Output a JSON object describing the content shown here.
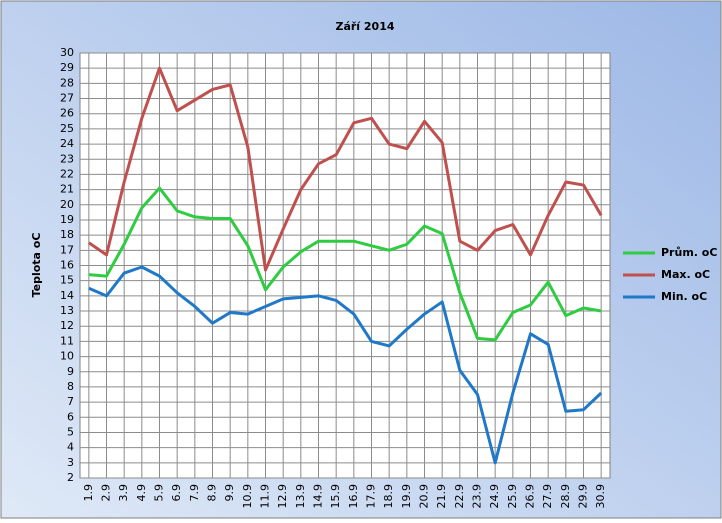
{
  "chart_data": {
    "type": "line",
    "title": "Září 2014",
    "y_label": "Teplota oC",
    "categories": [
      "1.9",
      "2.9",
      "3.9",
      "4.9",
      "5.9",
      "6.9",
      "7.9",
      "8.9",
      "9.9",
      "10.9",
      "11.9",
      "12.9",
      "13.9",
      "14.9",
      "15.9",
      "16.9",
      "17.9",
      "18.9",
      "19.9",
      "20.9",
      "21.9",
      "22.9",
      "23.9",
      "24.9",
      "25.9",
      "26.9",
      "27.9",
      "28.9",
      "29.9",
      "30.9"
    ],
    "series": [
      {
        "name": "Prům. oC",
        "color": "#2ecc40",
        "values": [
          15.4,
          15.3,
          17.4,
          19.8,
          21.1,
          19.6,
          19.2,
          19.1,
          19.1,
          17.3,
          14.4,
          15.9,
          16.9,
          17.6,
          17.6,
          17.6,
          17.3,
          17.0,
          17.4,
          18.6,
          18.1,
          14.2,
          11.2,
          11.1,
          12.9,
          13.4,
          14.9,
          12.7,
          13.2,
          13.0
        ]
      },
      {
        "name": "Max. oC",
        "color": "#c0504d",
        "values": [
          17.5,
          16.7,
          21.5,
          25.7,
          29.0,
          26.2,
          26.9,
          27.6,
          27.9,
          23.8,
          15.7,
          18.4,
          21.0,
          22.7,
          23.3,
          25.4,
          25.7,
          24.0,
          23.7,
          25.5,
          24.1,
          17.6,
          17.0,
          18.3,
          18.7,
          16.7,
          19.3,
          21.5,
          21.3,
          19.3
        ]
      },
      {
        "name": "Min. oC",
        "color": "#1f78c8",
        "values": [
          14.5,
          14.0,
          15.5,
          15.9,
          15.3,
          14.2,
          13.3,
          12.2,
          12.9,
          12.8,
          13.3,
          13.8,
          13.9,
          14.0,
          13.7,
          12.8,
          11.0,
          10.7,
          11.8,
          12.8,
          13.6,
          9.1,
          7.5,
          3.0,
          7.6,
          11.5,
          10.8,
          6.4,
          6.5,
          7.6
        ]
      }
    ],
    "ylim": [
      2,
      30
    ],
    "yticks": [
      2,
      3,
      4,
      5,
      6,
      7,
      8,
      9,
      10,
      11,
      12,
      13,
      14,
      15,
      16,
      17,
      18,
      19,
      20,
      21,
      22,
      23,
      24,
      25,
      26,
      27,
      28,
      29,
      30
    ],
    "grid": true,
    "legend": "right"
  }
}
